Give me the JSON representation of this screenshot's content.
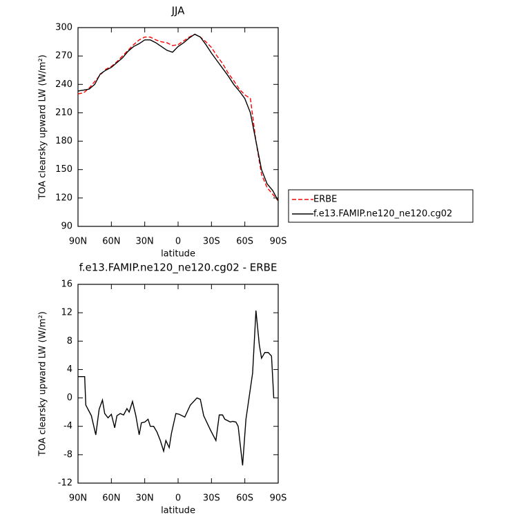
{
  "chart_data": [
    {
      "type": "line",
      "title": "JJA",
      "xlabel": "latitude",
      "ylabel": "TOA clearsky upward LW (W/m²)",
      "x": [
        90,
        85,
        80,
        75,
        70,
        65,
        60,
        55,
        50,
        45,
        40,
        35,
        30,
        25,
        20,
        15,
        10,
        5,
        0,
        -5,
        -10,
        -15,
        -20,
        -25,
        -30,
        -35,
        -40,
        -45,
        -50,
        -55,
        -60,
        -65,
        -70,
        -75,
        -80,
        -85,
        -90
      ],
      "series": [
        {
          "name": "ERBE",
          "color": "#ff0000",
          "dash": true,
          "values": [
            230,
            231,
            236,
            243,
            250,
            256,
            259,
            264,
            270,
            276,
            282,
            287,
            290,
            290,
            287,
            285,
            284,
            281,
            282,
            286,
            290,
            293,
            290,
            285,
            279,
            270,
            262,
            252,
            244,
            235,
            229,
            225,
            180,
            145,
            131,
            124,
            117
          ]
        },
        {
          "name": "f.e13.FAMIP.ne120_ne120.cg02",
          "color": "#000000",
          "dash": false,
          "values": [
            233,
            234,
            235,
            240,
            251,
            255,
            258,
            263,
            268,
            275,
            280,
            283,
            287,
            287,
            284,
            280,
            276,
            274,
            280,
            284,
            289,
            293,
            290,
            282,
            273,
            265,
            257,
            249,
            240,
            233,
            225,
            210,
            180,
            150,
            135,
            128,
            117
          ]
        }
      ],
      "xlim": [
        90,
        -90
      ],
      "xticks": [
        {
          "value": 90,
          "label": "90N"
        },
        {
          "value": 60,
          "label": "60N"
        },
        {
          "value": 30,
          "label": "30N"
        },
        0,
        {
          "value": -30,
          "label": "30S"
        },
        {
          "value": -60,
          "label": "60S"
        },
        {
          "value": -90,
          "label": "90S"
        }
      ],
      "ylim": [
        90,
        300
      ],
      "yticks": [
        90,
        120,
        150,
        180,
        210,
        240,
        270,
        300
      ],
      "legend": "right"
    },
    {
      "type": "line",
      "title": "f.e13.FAMIP.ne120_ne120.cg02 - ERBE",
      "xlabel": "latitude",
      "ylabel": "TOA clearsky upward LW (W/m²)",
      "x": [
        90,
        87,
        84,
        83,
        78,
        74,
        71,
        68,
        66,
        63,
        60,
        57,
        55,
        52,
        49,
        46,
        44,
        41,
        38,
        35,
        33,
        30,
        27,
        25,
        22,
        19,
        16,
        13,
        11,
        8,
        6,
        2,
        -1,
        -6,
        -11,
        -17,
        -20,
        -23,
        -29,
        -34,
        -37,
        -40,
        -42,
        -47,
        -49,
        -52,
        -54,
        -58,
        -61,
        -67,
        -70,
        -73,
        -75,
        -78,
        -81,
        -84,
        -86
      ],
      "series": [
        {
          "color": "#000000",
          "dash": false,
          "values": [
            3,
            3,
            3,
            -1,
            -2.5,
            -5.2,
            -1.6,
            -0.3,
            -2.2,
            -2.8,
            -2.3,
            -4.2,
            -2.5,
            -2.2,
            -2.4,
            -1.5,
            -2,
            -0.5,
            -2.5,
            -5.2,
            -3.5,
            -3.4,
            -3,
            -4,
            -4,
            -4.8,
            -6,
            -7.5,
            -6,
            -7,
            -5,
            -2.2,
            -2.3,
            -2.7,
            -1,
            0,
            -0.2,
            -2.5,
            -4.5,
            -6,
            -2.4,
            -2.4,
            -3,
            -3.4,
            -3.3,
            -3.4,
            -4,
            -9.5,
            -3,
            3.5,
            12.3,
            7.5,
            5.6,
            6.4,
            6.4,
            5.9,
            0
          ]
        }
      ],
      "xlim": [
        90,
        -90
      ],
      "xticks": [
        {
          "value": 90,
          "label": "90N"
        },
        {
          "value": 60,
          "label": "60N"
        },
        {
          "value": 30,
          "label": "30N"
        },
        0,
        {
          "value": -30,
          "label": "30S"
        },
        {
          "value": -60,
          "label": "60S"
        },
        {
          "value": -90,
          "label": "90S"
        }
      ],
      "ylim": [
        -12,
        16
      ],
      "yticks": [
        -12,
        -8,
        -4,
        0,
        4,
        8,
        12,
        16
      ]
    }
  ]
}
